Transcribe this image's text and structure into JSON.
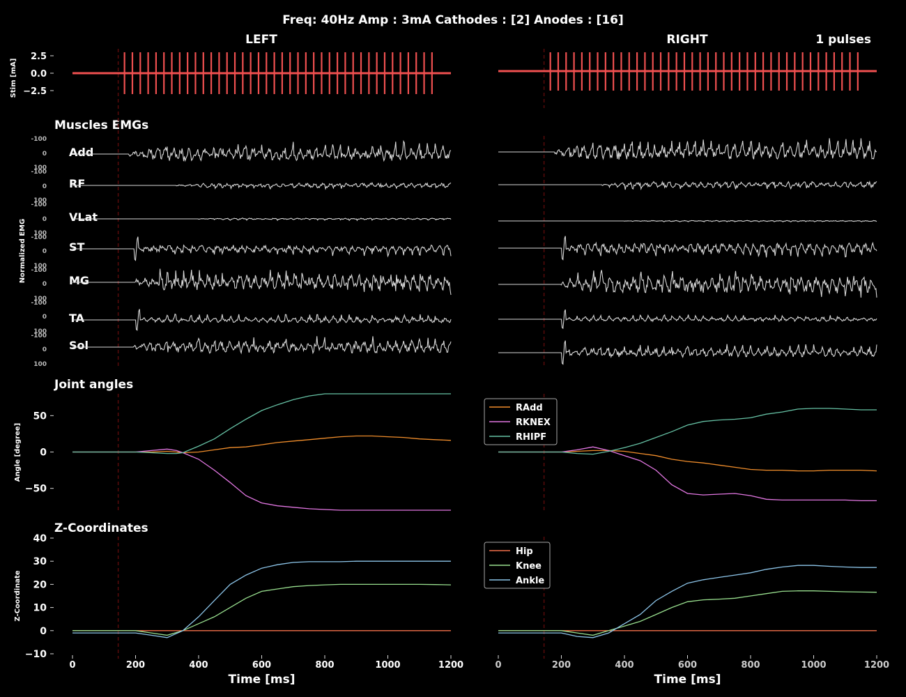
{
  "header": {
    "title": "Freq: 40Hz  Amp : 3mA  Cathodes : [2]  Anodes : [16]",
    "left_label": "LEFT",
    "right_label": "RIGHT",
    "pulses_label": "1 pulses"
  },
  "sections": {
    "emg": "Muscles EMGs",
    "angles": "Joint angles",
    "z": "Z-Coordinates"
  },
  "colors": {
    "background": "#000000",
    "stim": "#f05050",
    "emg": "#d9d9d9",
    "marker": "#5a0a0a",
    "RAdd": "#f28e2b",
    "RKNEX": "#e377e3",
    "RHIPF": "#66c2a5",
    "Hip": "#f4714a",
    "Knee": "#99e08f",
    "Ankle": "#8ec7ec"
  },
  "chart_data": [
    {
      "id": "stim",
      "type": "line",
      "ylabel": "Stim [mA]",
      "yticks": [
        "2.5",
        "0.0",
        "−2.5"
      ],
      "ylim": [
        -4.5,
        4.5
      ],
      "xlim": [
        0,
        1200
      ],
      "stim_onset_ms": 145,
      "left": {
        "first_pulse_ms": 165,
        "period_ms": 25,
        "last_pulse_ms": 1140,
        "amplitude": [
          3.0,
          -3.0
        ],
        "baseline": 0.0
      },
      "right": {
        "first_pulse_ms": 165,
        "period_ms": 25,
        "last_pulse_ms": 1140,
        "amplitude": [
          3.0,
          -2.5
        ],
        "baseline": 0.3
      }
    },
    {
      "id": "emg",
      "type": "line",
      "ylabel": "Normalized EMG",
      "tick_labels": [
        "-100",
        "0",
        "100"
      ],
      "muscles": [
        "Add",
        "RF",
        "VLat",
        "ST",
        "MG",
        "TA",
        "Sol"
      ],
      "left_activity": [
        {
          "onset_ms": 180,
          "amp": 0.45
        },
        {
          "onset_ms": 330,
          "amp": 0.15
        },
        {
          "onset_ms": 400,
          "amp": 0.05
        },
        {
          "onset_ms": 195,
          "amp": 0.25,
          "burst": 1.0
        },
        {
          "onset_ms": 200,
          "amp": 0.55
        },
        {
          "onset_ms": 200,
          "amp": 0.2,
          "burst": 0.9
        },
        {
          "onset_ms": 195,
          "amp": 0.4
        }
      ],
      "right_activity": [
        {
          "onset_ms": 180,
          "amp": 0.5
        },
        {
          "onset_ms": 330,
          "amp": 0.2
        },
        {
          "onset_ms": 400,
          "amp": 0.03
        },
        {
          "onset_ms": 200,
          "amp": 0.35,
          "burst": 1.0
        },
        {
          "onset_ms": 200,
          "amp": 0.6
        },
        {
          "onset_ms": 200,
          "amp": 0.15,
          "burst": 0.8
        },
        {
          "onset_ms": 200,
          "amp": 0.3,
          "burst": 1.0
        }
      ]
    },
    {
      "id": "angles",
      "type": "line",
      "ylabel": "Angle [degree]",
      "ylim": [
        -80,
        80
      ],
      "yticks": [
        50,
        0,
        -50
      ],
      "ytick_labels": [
        "50",
        "0",
        "−50"
      ],
      "legend": [
        "RAdd",
        "RKNEX",
        "RHIPF"
      ],
      "legend_position": "top-left of right panel",
      "left": {
        "x": [
          0,
          100,
          200,
          250,
          300,
          330,
          350,
          400,
          450,
          500,
          550,
          600,
          650,
          700,
          750,
          800,
          850,
          900,
          950,
          1000,
          1050,
          1100,
          1150,
          1200
        ],
        "RAdd": [
          0,
          0,
          0,
          0,
          1,
          0,
          -1,
          0,
          3,
          6,
          7,
          10,
          13,
          15,
          17,
          19,
          21,
          22,
          22,
          21,
          20,
          18,
          17,
          16
        ],
        "RKNEX": [
          0,
          0,
          0,
          2,
          4,
          2,
          -1,
          -10,
          -25,
          -42,
          -60,
          -70,
          -74,
          -76,
          -78,
          -79,
          -80,
          -80,
          -80,
          -80,
          -80,
          -80,
          -80,
          -80
        ],
        "RHIPF": [
          0,
          0,
          0,
          -1,
          -2,
          -2,
          -1,
          8,
          18,
          32,
          45,
          57,
          65,
          72,
          77,
          80,
          80,
          80,
          80,
          80,
          80,
          80,
          80,
          80
        ]
      },
      "right": {
        "x": [
          0,
          100,
          200,
          250,
          300,
          350,
          400,
          450,
          500,
          550,
          600,
          650,
          700,
          750,
          800,
          850,
          900,
          950,
          1000,
          1050,
          1100,
          1150,
          1200
        ],
        "RAdd": [
          0,
          0,
          0,
          1,
          2,
          2,
          1,
          -2,
          -5,
          -10,
          -13,
          -15,
          -18,
          -21,
          -24,
          -25,
          -25,
          -26,
          -26,
          -25,
          -25,
          -25,
          -26
        ],
        "RKNEX": [
          0,
          0,
          0,
          3,
          7,
          2,
          -5,
          -12,
          -25,
          -45,
          -57,
          -59,
          -58,
          -57,
          -60,
          -65,
          -66,
          -66,
          -66,
          -66,
          -66,
          -67,
          -67
        ],
        "RHIPF": [
          0,
          0,
          0,
          -2,
          -3,
          1,
          6,
          12,
          20,
          28,
          37,
          42,
          44,
          45,
          47,
          52,
          55,
          59,
          60,
          60,
          59,
          58,
          58
        ]
      }
    },
    {
      "id": "zcoord",
      "type": "line",
      "ylabel": "Z-Coordinate",
      "xlabel": "Time [ms]",
      "ylim": [
        -10,
        40
      ],
      "yticks": [
        40,
        30,
        20,
        10,
        0,
        -10
      ],
      "ytick_labels": [
        "40",
        "30",
        "20",
        "10",
        "0",
        "−10"
      ],
      "xticks": [
        0,
        200,
        400,
        600,
        800,
        1000,
        1200
      ],
      "legend": [
        "Hip",
        "Knee",
        "Ankle"
      ],
      "legend_position": "top-left of right panel",
      "left": {
        "x": [
          0,
          100,
          200,
          250,
          300,
          350,
          400,
          450,
          500,
          550,
          600,
          650,
          700,
          750,
          800,
          850,
          900,
          950,
          1000,
          1050,
          1100,
          1150,
          1200
        ],
        "Hip": [
          0,
          0,
          0,
          0,
          0,
          0,
          0,
          0,
          0,
          0,
          0,
          0,
          0,
          0,
          0,
          0,
          0,
          0,
          0,
          0,
          0,
          0,
          0
        ],
        "Knee": [
          0,
          0,
          0,
          -1,
          -2,
          0,
          3,
          6,
          10,
          14,
          17,
          18,
          19,
          19.5,
          19.8,
          20,
          20,
          20,
          20,
          20,
          20,
          19.9,
          19.8
        ],
        "Ankle": [
          -1,
          -1,
          -1,
          -2,
          -3,
          0,
          6,
          13,
          20,
          24,
          27,
          28.5,
          29.5,
          29.8,
          29.8,
          29.8,
          30,
          30,
          30,
          30,
          30,
          30,
          30
        ]
      },
      "right": {
        "x": [
          0,
          100,
          200,
          250,
          300,
          350,
          400,
          450,
          500,
          550,
          600,
          650,
          700,
          750,
          800,
          850,
          900,
          950,
          1000,
          1050,
          1100,
          1150,
          1200
        ],
        "Hip": [
          0,
          0,
          0,
          0,
          0,
          0,
          0,
          0,
          0,
          0,
          0,
          0,
          0,
          0,
          0,
          0,
          0,
          0,
          0,
          0,
          0,
          0,
          0
        ],
        "Knee": [
          0,
          0,
          0,
          -1,
          -2,
          0,
          2,
          4,
          7,
          10,
          12.5,
          13.3,
          13.6,
          14,
          15,
          16,
          17,
          17.2,
          17.2,
          17,
          16.8,
          16.7,
          16.6
        ],
        "Ankle": [
          -1,
          -1,
          -1,
          -2.5,
          -3,
          -1,
          3,
          7,
          13,
          17,
          20.5,
          22,
          23,
          24,
          25,
          26.5,
          27.5,
          28.2,
          28.2,
          27.8,
          27.5,
          27.3,
          27.3
        ]
      }
    }
  ]
}
